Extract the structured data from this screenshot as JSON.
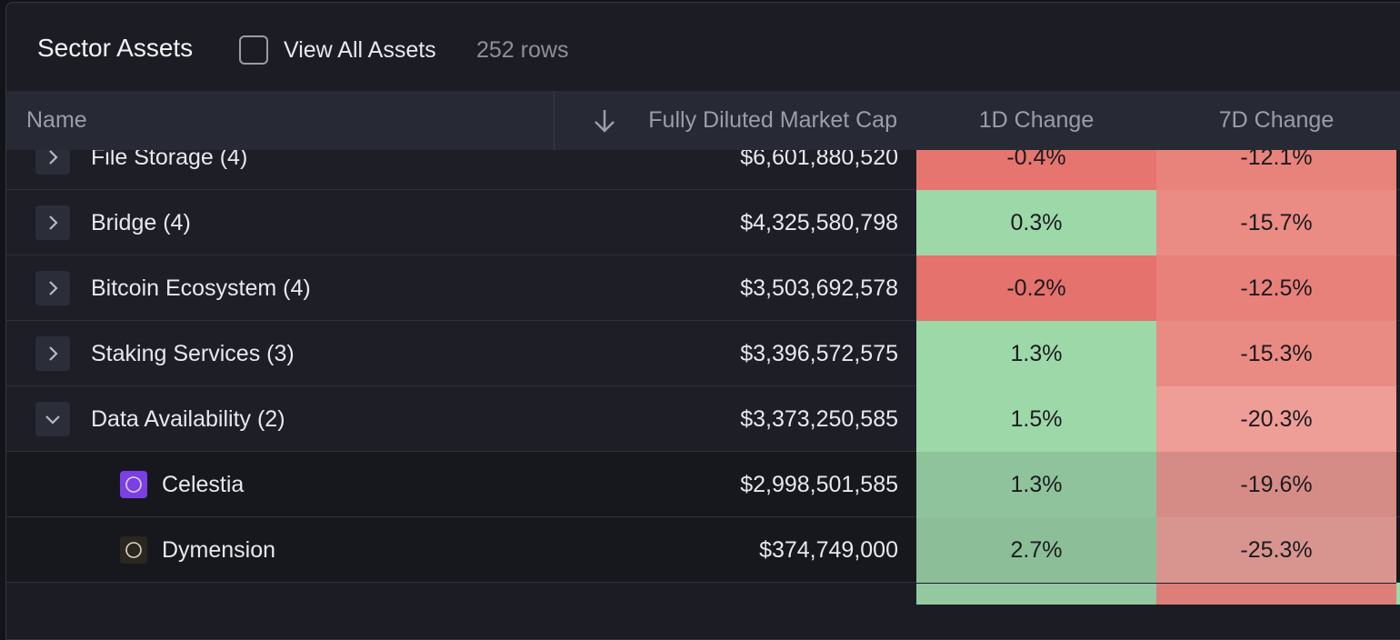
{
  "header": {
    "title": "Sector Assets",
    "checkbox_label": "View All Assets",
    "row_count": "252 rows"
  },
  "table": {
    "columns": [
      "Name",
      "Fully Diluted Market Cap",
      "1D Change",
      "7D Change"
    ],
    "rows": [
      {
        "name": "File Storage (4)",
        "market_cap": "$6,601,880,520",
        "change_1d": "-0.4%",
        "change_7d": "-12.1%",
        "level": "group",
        "expanded": false,
        "color_1d": "#e6756f",
        "color_7d": "#e8837b"
      },
      {
        "name": "Bridge (4)",
        "market_cap": "$4,325,580,798",
        "change_1d": "0.3%",
        "change_7d": "-15.7%",
        "level": "group",
        "expanded": false,
        "color_1d": "#9dd8a9",
        "color_7d": "#ea8c84"
      },
      {
        "name": "Bitcoin Ecosystem (4)",
        "market_cap": "$3,503,692,578",
        "change_1d": "-0.2%",
        "change_7d": "-12.5%",
        "level": "group",
        "expanded": false,
        "color_1d": "#e5726c",
        "color_7d": "#e8817a"
      },
      {
        "name": "Staking Services (3)",
        "market_cap": "$3,396,572,575",
        "change_1d": "1.3%",
        "change_7d": "-15.3%",
        "level": "group",
        "expanded": false,
        "color_1d": "#9dd8a9",
        "color_7d": "#ea8b83"
      },
      {
        "name": "Data Availability (2)",
        "market_cap": "$3,373,250,585",
        "change_1d": "1.5%",
        "change_7d": "-20.3%",
        "level": "group",
        "expanded": true,
        "color_1d": "#9dd8a9",
        "color_7d": "#ee9d97"
      },
      {
        "name": "Celestia",
        "market_cap": "$2,998,501,585",
        "change_1d": "1.3%",
        "change_7d": "-19.6%",
        "level": "asset",
        "icon_color": "#7b3fe4",
        "color_1d": "#8fc39b",
        "color_7d": "#d68c86"
      },
      {
        "name": "Dymension",
        "market_cap": "$374,749,000",
        "change_1d": "2.7%",
        "change_7d": "-25.3%",
        "level": "asset",
        "icon_color": "#2a2620",
        "color_1d": "#8cbf98",
        "color_7d": "#d8958f"
      }
    ]
  }
}
